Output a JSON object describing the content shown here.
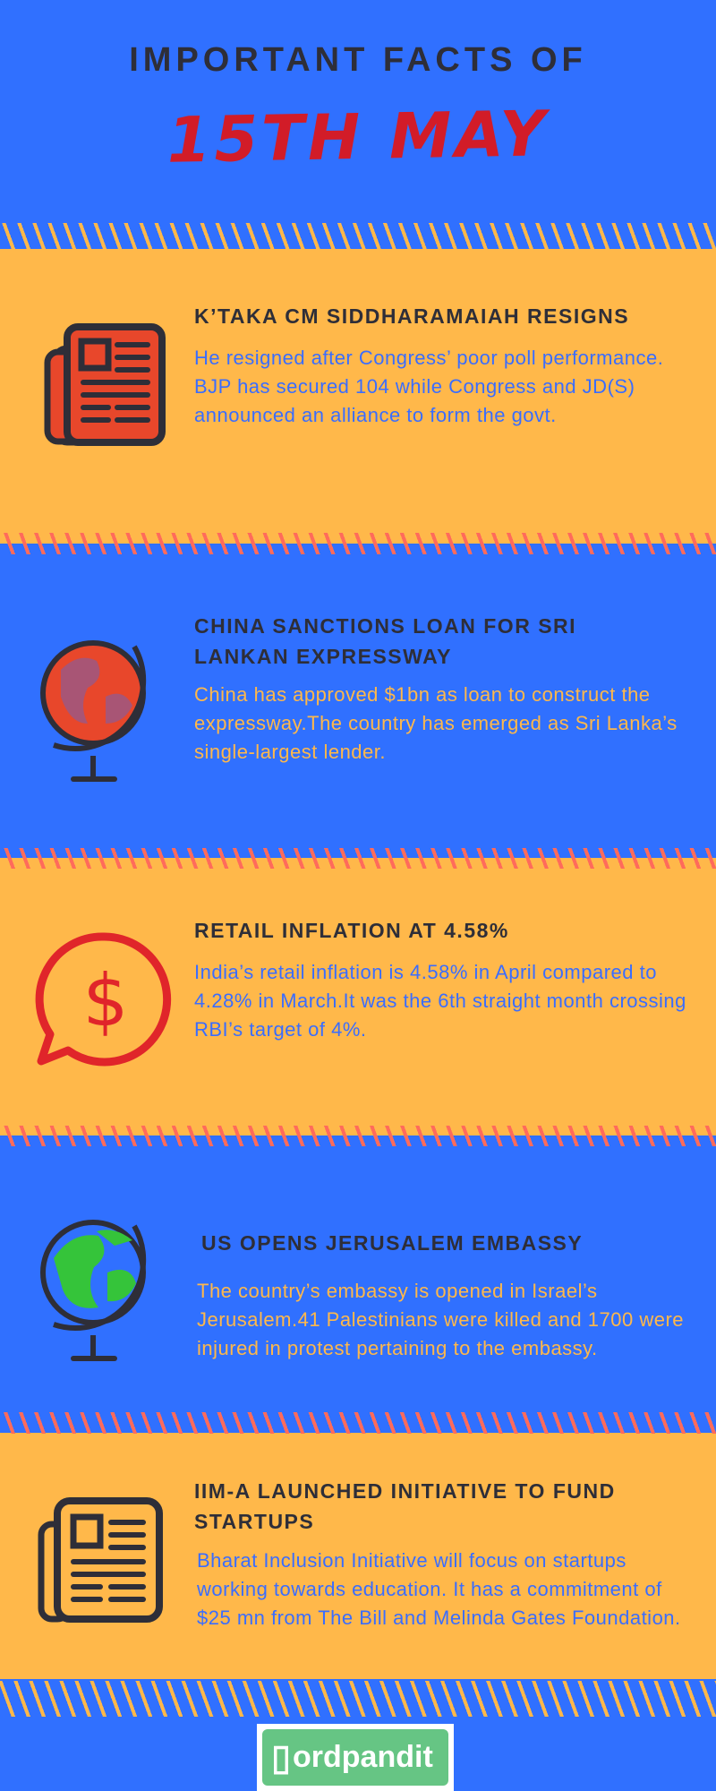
{
  "header": {
    "title": "IMPORTANT FACTS OF",
    "date": "15TH MAY"
  },
  "colors": {
    "blue": "#3070ff",
    "orange": "#ffb84a",
    "dark": "#2e2e38",
    "red": "#d21c28",
    "stripe_red": "#ff6b5b"
  },
  "facts": [
    {
      "icon": "newspaper-icon",
      "heading": "K’TAKA CM SIDDHARAMAIAH RESIGNS",
      "body": "He resigned after Congress’ poor poll performance. BJP has secured 104 while Congress and JD(S) announced an alliance to form the govt."
    },
    {
      "icon": "globe-icon",
      "heading": "CHINA SANCTIONS LOAN FOR SRI LANKAN EXPRESSWAY",
      "body": "China has approved $1bn as loan to construct the expressway.The country has emerged as Sri Lanka’s single-largest lender."
    },
    {
      "icon": "dollar-speech-bubble-icon",
      "heading": "RETAIL INFLATION AT 4.58%",
      "body": "India’s retail inflation is 4.58% in April compared to 4.28% in March.It was the 6th straight month crossing RBI’s target of 4%."
    },
    {
      "icon": "globe-icon",
      "heading": "US OPENS JERUSALEM EMBASSY",
      "body": "The country’s embassy is opened in Israel’s Jerusalem.41 Palestinians were killed and 1700 were injured in protest pertaining to the embassy."
    },
    {
      "icon": "newspaper-icon",
      "heading": "IIM-A LAUNCHED INITIATIVE TO FUND STARTUPS",
      "body": "Bharat Inclusion Initiative will focus on startups working towards education. It has a commitment of $25 mn from The Bill and Melinda Gates Foundation."
    }
  ],
  "footer": {
    "logo": "Wordpandit",
    "logo_text": "ordpandit"
  }
}
